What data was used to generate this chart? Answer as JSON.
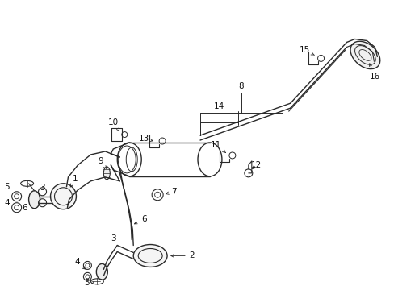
{
  "background_color": "#ffffff",
  "line_color": "#2a2a2a",
  "text_color": "#111111",
  "fig_width": 4.89,
  "fig_height": 3.6,
  "dpi": 100
}
